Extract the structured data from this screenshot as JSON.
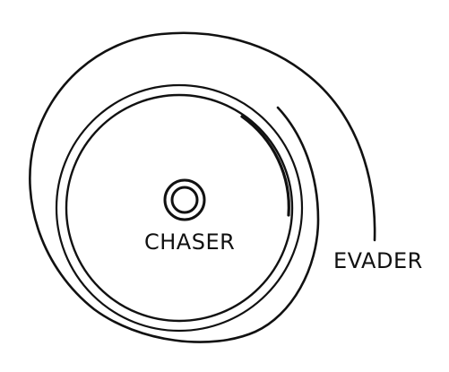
{
  "labels": {
    "chaser": "CHASER",
    "evader": "EVADER"
  },
  "colors": {
    "ink": "#111111",
    "paper": "#ffffff"
  }
}
